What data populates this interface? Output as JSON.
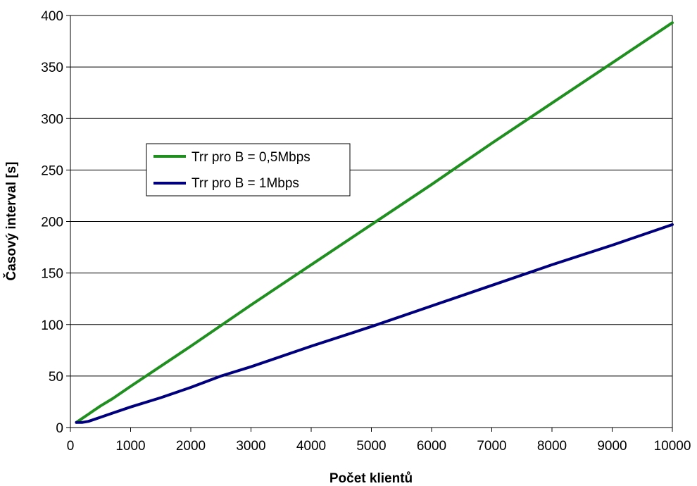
{
  "chart_data": {
    "type": "line",
    "title": "",
    "xlabel": "Počet klientů",
    "ylabel": "Časový interval [s]",
    "xlim": [
      0,
      10000
    ],
    "ylim": [
      0,
      400
    ],
    "x_ticks": [
      0,
      1000,
      2000,
      3000,
      4000,
      5000,
      6000,
      7000,
      8000,
      9000,
      10000
    ],
    "y_ticks": [
      0,
      50,
      100,
      150,
      200,
      250,
      300,
      350,
      400
    ],
    "grid": "horizontal",
    "legend_position": "upper-left-inside",
    "series": [
      {
        "name": "Trr pro B = 0,5Mbps",
        "color": "#1f8f1f",
        "x": [
          100,
          200,
          300,
          400,
          500,
          700,
          1000,
          2000,
          3000,
          4000,
          5000,
          6000,
          7000,
          8000,
          9000,
          10000
        ],
        "y": [
          5,
          9,
          13,
          17,
          21,
          28,
          40,
          79,
          119,
          158,
          197,
          236,
          276,
          315,
          354,
          393
        ]
      },
      {
        "name": "Trr pro B = 1Mbps",
        "color": "#00007f",
        "x": [
          100,
          200,
          300,
          400,
          500,
          700,
          1000,
          1500,
          2000,
          2500,
          3000,
          4000,
          5000,
          6000,
          7000,
          8000,
          9000,
          10000
        ],
        "y": [
          5,
          5,
          6,
          8,
          10,
          14,
          20,
          29,
          39,
          50,
          59,
          79,
          98,
          118,
          138,
          158,
          177,
          197
        ]
      }
    ]
  }
}
